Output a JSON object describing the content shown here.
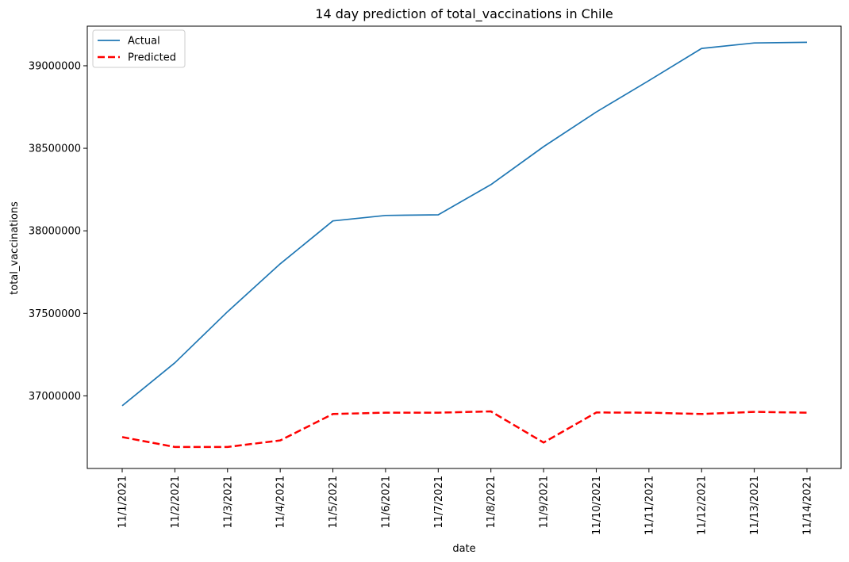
{
  "chart_data": {
    "type": "line",
    "title": "14 day prediction of total_vaccinations in Chile",
    "xlabel": "date",
    "ylabel": "total_vaccinations",
    "x": [
      "11/1/2021",
      "11/2/2021",
      "11/3/2021",
      "11/4/2021",
      "11/5/2021",
      "11/6/2021",
      "11/7/2021",
      "11/8/2021",
      "11/9/2021",
      "11/10/2021",
      "11/11/2021",
      "11/12/2021",
      "11/13/2021",
      "11/14/2021"
    ],
    "yticks": [
      37000000,
      37500000,
      38000000,
      38500000,
      39000000
    ],
    "ylim": [
      36560000,
      39240000
    ],
    "grid": false,
    "legend_position": "top-left",
    "series": [
      {
        "name": "Actual",
        "color": "#1f77b4",
        "style": "solid",
        "values": [
          36940000,
          37200000,
          37510000,
          37800000,
          38060000,
          38093000,
          38097000,
          38280000,
          38510000,
          38720000,
          38910000,
          39105000,
          39138000,
          39142000
        ]
      },
      {
        "name": "Predicted",
        "color": "#ff0000",
        "style": "dashed",
        "values": [
          36750000,
          36690000,
          36690000,
          36730000,
          36890000,
          36898000,
          36898000,
          36906000,
          36717000,
          36899000,
          36898000,
          36890000,
          36903000,
          36898000
        ]
      }
    ]
  }
}
